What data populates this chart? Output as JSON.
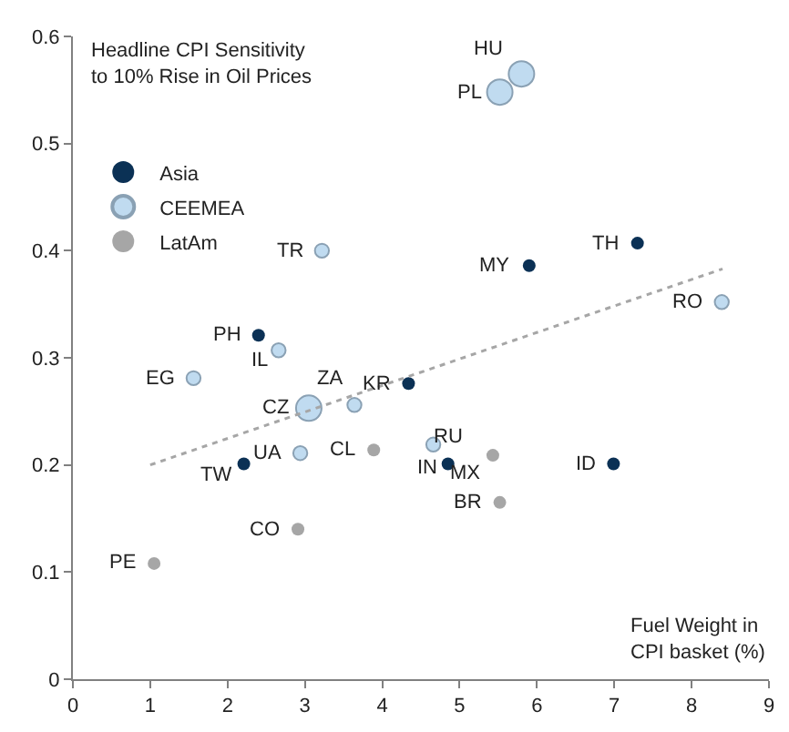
{
  "chart_data": {
    "type": "scatter",
    "ylabel": "Headline CPI Sensitivity\nto 10% Rise in Oil Prices",
    "xlabel": "Fuel Weight in\nCPI basket (%)",
    "xlim": [
      0,
      9
    ],
    "xticks": [
      0,
      1,
      2,
      3,
      4,
      5,
      6,
      7,
      8,
      9
    ],
    "ylim": [
      0,
      0.6
    ],
    "yticks": [
      0,
      0.1,
      0.2,
      0.3,
      0.4,
      0.5,
      0.6
    ],
    "legend": "top left",
    "marker": "circle",
    "series": [
      {
        "name": "Asia",
        "color": "#0b3155",
        "x": [
          5.9,
          7.3,
          2.4,
          4.34,
          2.21,
          4.85,
          6.99
        ],
        "values": [
          0.386,
          0.407,
          0.321,
          0.276,
          0.201,
          0.201,
          0.201
        ]
      },
      {
        "name": "CEEMEA",
        "type": "bubble",
        "color": "#a6cdea",
        "x": [
          5.8,
          5.52,
          3.22,
          8.39,
          2.66,
          1.56,
          3.05,
          3.64,
          2.94,
          4.66
        ],
        "values": [
          0.565,
          0.548,
          0.4,
          0.352,
          0.307,
          0.281,
          0.253,
          0.256,
          0.211,
          0.219
        ],
        "sizes": [
          1,
          1,
          0.3,
          0.3,
          0.3,
          0.3,
          1,
          0.3,
          0.3,
          0.3
        ]
      },
      {
        "name": "LatAm",
        "color": "#a6a6a6",
        "x": [
          3.89,
          5.43,
          5.52,
          2.91,
          1.05
        ],
        "values": [
          0.214,
          0.209,
          0.165,
          0.14,
          0.108
        ]
      },
      {
        "type": "line",
        "color": "#a6a6a6",
        "line_style": "dotted",
        "marker": "none",
        "x": [
          1,
          8.4
        ],
        "values": [
          0.2,
          0.383
        ]
      }
    ],
    "annotations": [
      {
        "text": "HU",
        "x": 5.8,
        "y": 0.565
      },
      {
        "text": "PL",
        "x": 5.52,
        "y": 0.548
      },
      {
        "text": "TR",
        "x": 3.22,
        "y": 0.4
      },
      {
        "text": "MY",
        "x": 5.9,
        "y": 0.386
      },
      {
        "text": "TH",
        "x": 7.3,
        "y": 0.407
      },
      {
        "text": "RO",
        "x": 8.39,
        "y": 0.352
      },
      {
        "text": "PH",
        "x": 2.4,
        "y": 0.321
      },
      {
        "text": "IL",
        "x": 2.66,
        "y": 0.307
      },
      {
        "text": "EG",
        "x": 1.56,
        "y": 0.281
      },
      {
        "text": "CZ",
        "x": 3.05,
        "y": 0.253
      },
      {
        "text": "ZA",
        "x": 3.64,
        "y": 0.256
      },
      {
        "text": "KR",
        "x": 4.34,
        "y": 0.276
      },
      {
        "text": "UA",
        "x": 2.94,
        "y": 0.211
      },
      {
        "text": "TW",
        "x": 2.21,
        "y": 0.201
      },
      {
        "text": "CL",
        "x": 3.89,
        "y": 0.214
      },
      {
        "text": "RU",
        "x": 4.66,
        "y": 0.219
      },
      {
        "text": "IN",
        "x": 4.85,
        "y": 0.201
      },
      {
        "text": "MX",
        "x": 5.43,
        "y": 0.209
      },
      {
        "text": "ID",
        "x": 6.99,
        "y": 0.201
      },
      {
        "text": "BR",
        "x": 5.52,
        "y": 0.165
      },
      {
        "text": "CO",
        "x": 2.91,
        "y": 0.14
      },
      {
        "text": "PE",
        "x": 1.05,
        "y": 0.108
      }
    ]
  }
}
